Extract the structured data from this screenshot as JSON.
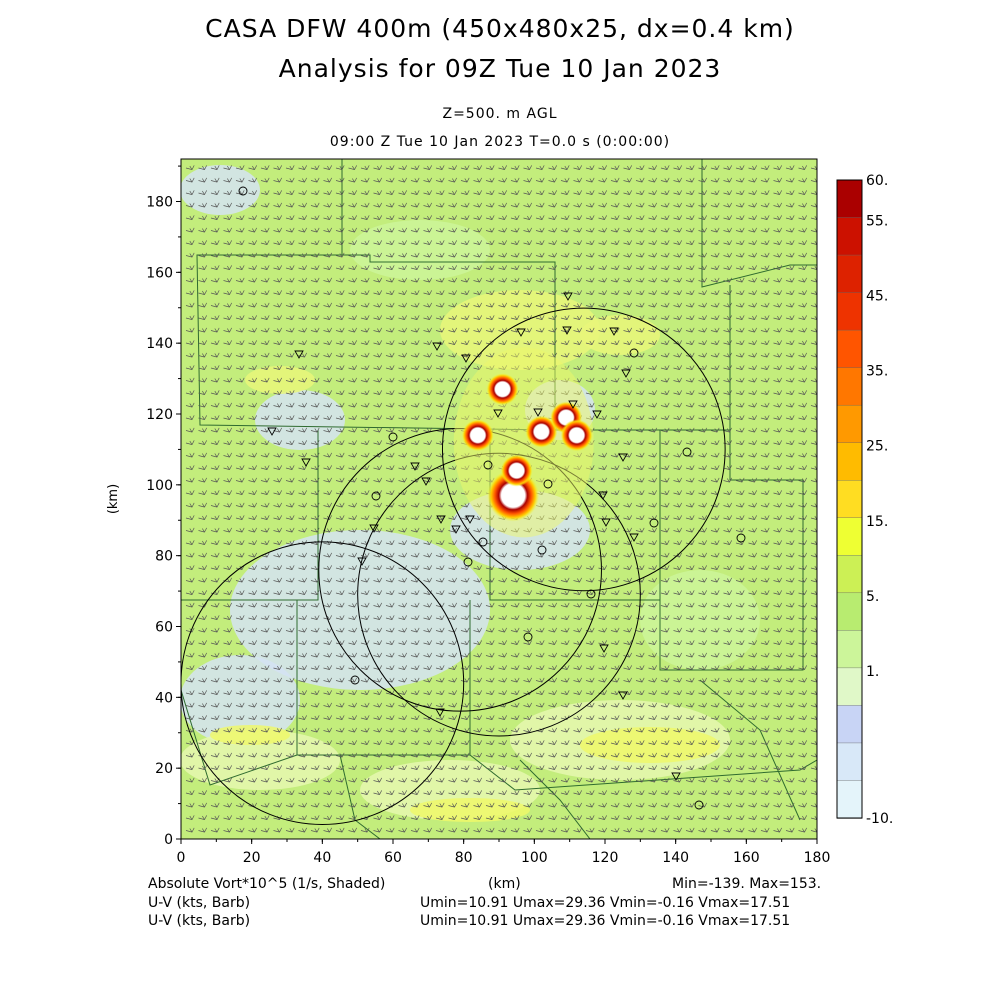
{
  "titles": {
    "line1": "CASA DFW 400m (450x480x25, dx=0.4 km)",
    "line2": "Analysis for 09Z Tue 10 Jan 2023",
    "level": "Z=500. m AGL",
    "time": "09:00 Z Tue 10 Jan 2023    T=0.0 s (0:00:00)"
  },
  "footer": {
    "field": "Absolute Vort*10^5 (1/s, Shaded)",
    "xunit": "(km)",
    "minmax": "Min=-139. Max=153.",
    "barb1_label": "U-V (kts, Barb)",
    "barb1_stats": "Umin=10.91 Umax=29.36 Vmin=-0.16 Vmax=17.51",
    "barb2_label": "U-V (kts, Barb)",
    "barb2_stats": "Umin=10.91 Umax=29.36 Vmin=-0.16 Vmax=17.51"
  },
  "chart_data": {
    "type": "heatmap",
    "xlabel": "(km)",
    "ylabel": "(km)",
    "xlim": [
      0,
      180
    ],
    "ylim": [
      0,
      192
    ],
    "xticks": [
      0,
      20,
      40,
      60,
      80,
      100,
      120,
      140,
      160,
      180
    ],
    "yticks": [
      0,
      20,
      40,
      60,
      80,
      100,
      120,
      140,
      160,
      180
    ],
    "colorbar": {
      "labels": [
        "60.",
        "55.",
        "45.",
        "35.",
        "25.",
        "15.",
        "5.",
        "1.",
        "-10."
      ],
      "colors": [
        "#aa0000",
        "#cc1100",
        "#dd2200",
        "#ee3300",
        "#ff5500",
        "#ff7700",
        "#ff9900",
        "#ffbb00",
        "#ffdd22",
        "#eeff33",
        "#ccf055",
        "#b8ec70",
        "#ccf59a",
        "#e0f8c8",
        "#c8d4f5",
        "#d8e8f8",
        "#e4f4fa"
      ]
    },
    "radar_circles": [
      {
        "cx": 40,
        "cy": 44,
        "r": 40
      },
      {
        "cx": 79,
        "cy": 76,
        "r": 40
      },
      {
        "cx": 90,
        "cy": 69,
        "r": 40
      },
      {
        "cx": 114,
        "cy": 110,
        "r": 40
      }
    ],
    "vorticity_maxima": [
      {
        "x": 94,
        "y": 97
      },
      {
        "x": 95,
        "y": 104
      },
      {
        "x": 102,
        "y": 115
      },
      {
        "x": 109,
        "y": 119
      },
      {
        "x": 84,
        "y": 114
      },
      {
        "x": 91,
        "y": 127
      },
      {
        "x": 112,
        "y": 114
      }
    ]
  }
}
